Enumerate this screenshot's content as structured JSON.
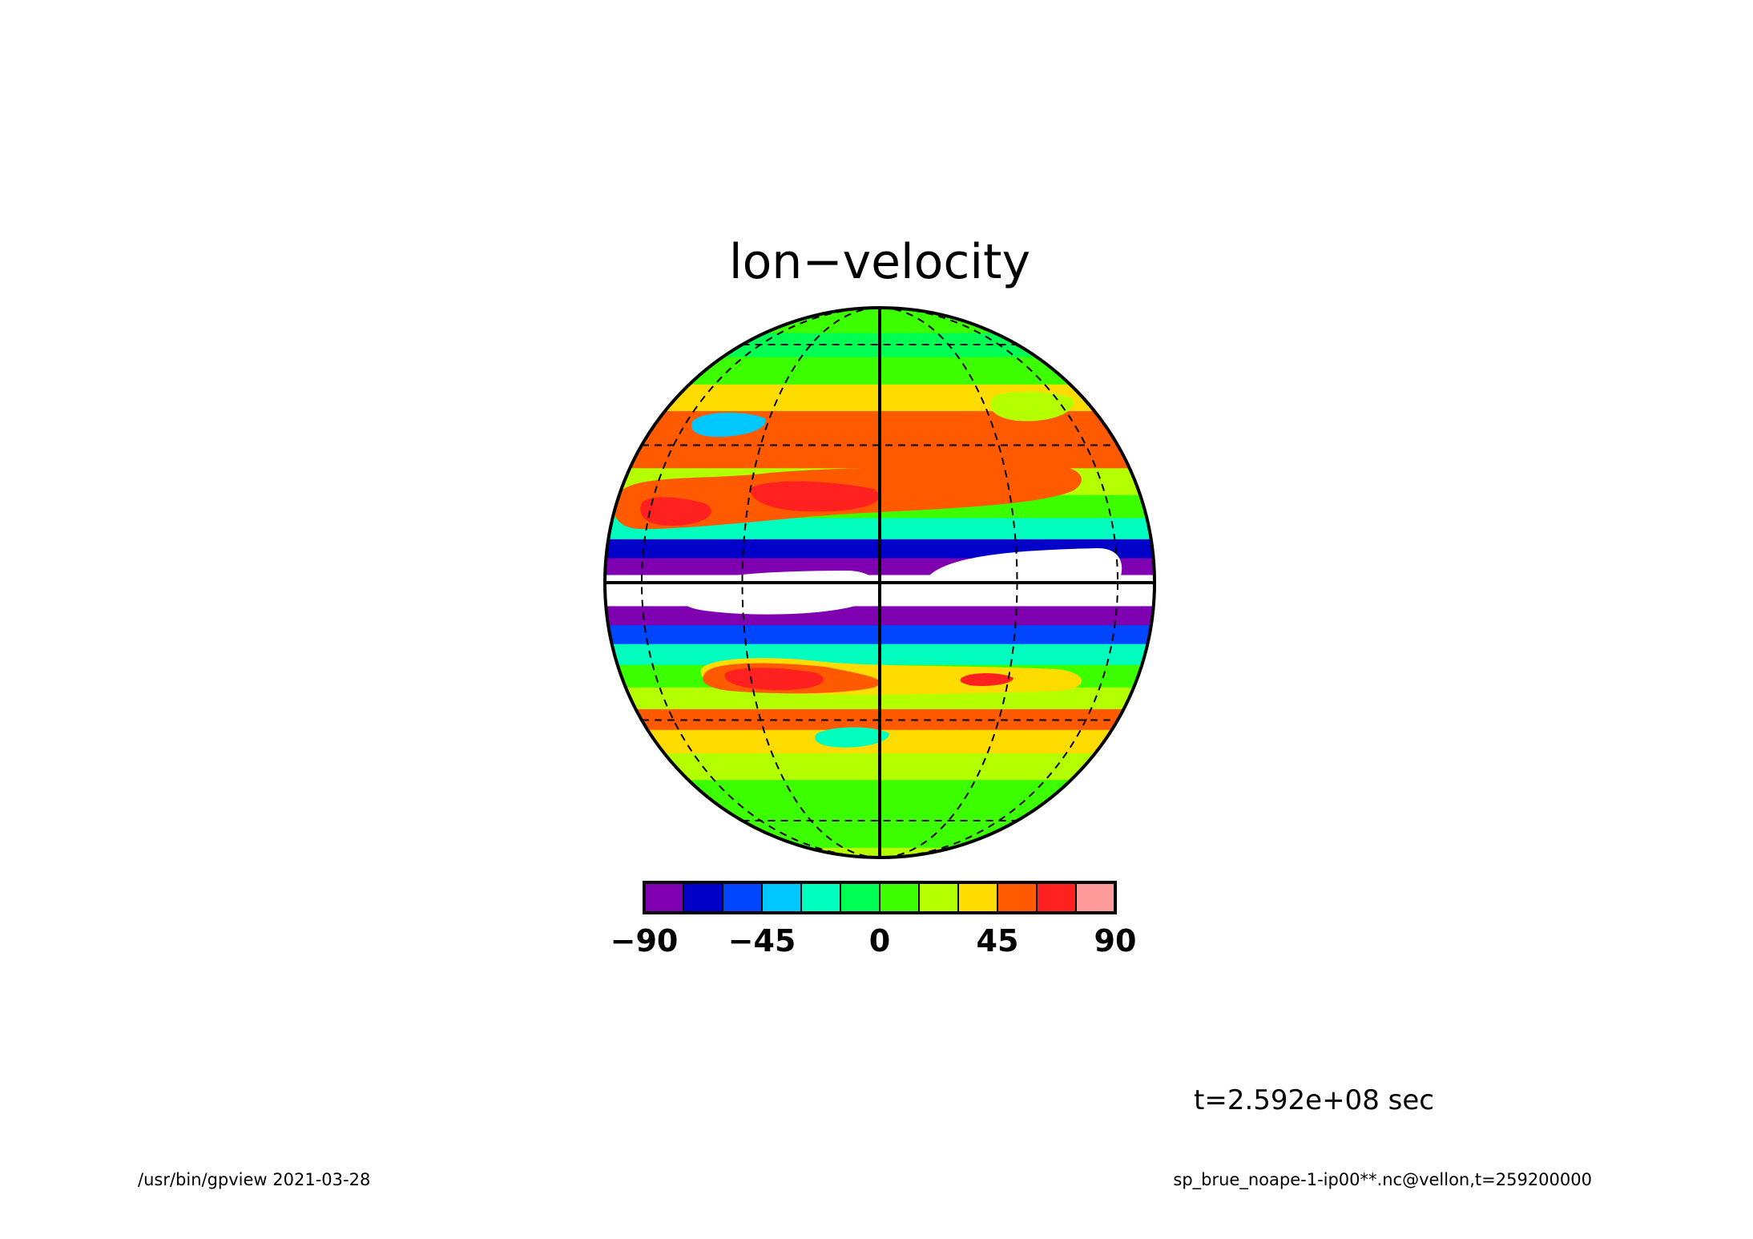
{
  "chart_data": {
    "type": "heatmap",
    "title": "lon−velocity",
    "projection": "orthographic",
    "grid": true,
    "colorbar": {
      "ticks": [
        "−90",
        "−45",
        "0",
        "45",
        "90"
      ],
      "levels": [
        -90,
        -75,
        -60,
        -45,
        -30,
        -15,
        0,
        15,
        30,
        45,
        60,
        75,
        90
      ],
      "colors": [
        "#7f00b0",
        "#0000c8",
        "#0046ff",
        "#00c8ff",
        "#00ffbe",
        "#00ff55",
        "#3cff00",
        "#b4ff00",
        "#ffdc00",
        "#ff5a00",
        "#ff2020",
        "#ff9a9a"
      ]
    },
    "bands": [
      {
        "lat": 90,
        "value": 12
      },
      {
        "lat": 80,
        "value": 10
      },
      {
        "lat": 70,
        "value": 2
      },
      {
        "lat": 60,
        "value": -10
      },
      {
        "lat": 50,
        "value": 5
      },
      {
        "lat": 42,
        "value": 30
      },
      {
        "lat": 35,
        "value": 58
      },
      {
        "lat": 28,
        "value": 50
      },
      {
        "lat": 21,
        "value": 25
      },
      {
        "lat": 16,
        "value": 0
      },
      {
        "lat": 11,
        "value": -30
      },
      {
        "lat": 7,
        "value": -65
      },
      {
        "lat": 3,
        "value": -85
      },
      {
        "lat": 0,
        "value": -95
      },
      {
        "lat": -3,
        "value": -95
      },
      {
        "lat": -7,
        "value": -80
      },
      {
        "lat": -11,
        "value": -58
      },
      {
        "lat": -15,
        "value": -30
      },
      {
        "lat": -20,
        "value": 0
      },
      {
        "lat": -25,
        "value": 25
      },
      {
        "lat": -30,
        "value": 45
      },
      {
        "lat": -35,
        "value": 40
      },
      {
        "lat": -42,
        "value": 20
      },
      {
        "lat": -50,
        "value": 5
      },
      {
        "lat": -60,
        "value": 0
      },
      {
        "lat": -70,
        "value": 8
      },
      {
        "lat": -80,
        "value": 15
      },
      {
        "lat": -90,
        "value": 25
      }
    ]
  },
  "time_label": "t=2.592e+08 sec",
  "footer": {
    "left": "/usr/bin/gpview  2021-03-28",
    "right": "sp_brue_noape-1-ip00**.nc@vellon,t=259200000"
  }
}
